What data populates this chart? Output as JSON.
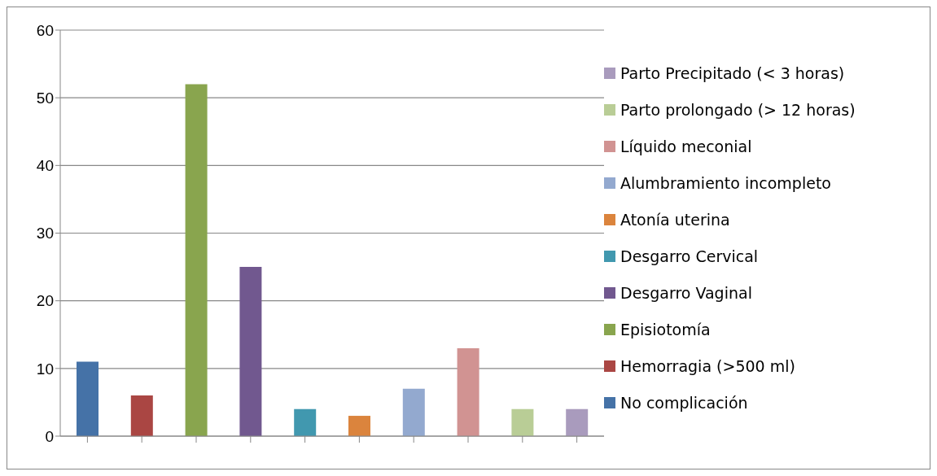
{
  "chart_data": {
    "type": "bar",
    "categories": [
      null,
      null,
      null,
      null,
      null,
      null,
      null,
      null,
      null,
      null
    ],
    "series": [
      {
        "name": "No  complicación",
        "color": "#4572a7",
        "values": [
          11,
          null,
          null,
          null,
          null,
          null,
          null,
          null,
          null,
          null
        ]
      },
      {
        "name": "Hemorragia (>500 ml)",
        "color": "#aa4643",
        "values": [
          null,
          6,
          null,
          null,
          null,
          null,
          null,
          null,
          null,
          null
        ]
      },
      {
        "name": "Episiotomía",
        "color": "#89a54e",
        "values": [
          null,
          null,
          52,
          null,
          null,
          null,
          null,
          null,
          null,
          null
        ]
      },
      {
        "name": "Desgarro Vaginal",
        "color": "#71588f",
        "values": [
          null,
          null,
          null,
          25,
          null,
          null,
          null,
          null,
          null,
          null
        ]
      },
      {
        "name": "Desgarro Cervical",
        "color": "#4198af",
        "values": [
          null,
          null,
          null,
          null,
          4,
          null,
          null,
          null,
          null,
          null
        ]
      },
      {
        "name": "Atonía uterina",
        "color": "#db843d",
        "values": [
          null,
          null,
          null,
          null,
          null,
          3,
          null,
          null,
          null,
          null
        ]
      },
      {
        "name": "Alumbramiento incompleto",
        "color": "#93a9cf",
        "values": [
          null,
          null,
          null,
          null,
          null,
          null,
          7,
          null,
          null,
          null
        ]
      },
      {
        "name": "Líquido meconial",
        "color": "#d19392",
        "values": [
          null,
          null,
          null,
          null,
          null,
          null,
          null,
          13,
          null,
          null
        ]
      },
      {
        "name": "Parto prolongado (> 12 horas)",
        "color": "#b9cd96",
        "values": [
          null,
          null,
          null,
          null,
          null,
          null,
          null,
          null,
          4,
          null
        ]
      },
      {
        "name": "Parto Precipitado (< 3 horas)",
        "color": "#a99bbd",
        "values": [
          null,
          null,
          null,
          null,
          null,
          null,
          null,
          null,
          null,
          4
        ]
      }
    ],
    "ylim": [
      0,
      60
    ],
    "yticks": [
      0,
      10,
      20,
      30,
      40,
      50,
      60
    ],
    "grid": "y",
    "legend": "right"
  }
}
